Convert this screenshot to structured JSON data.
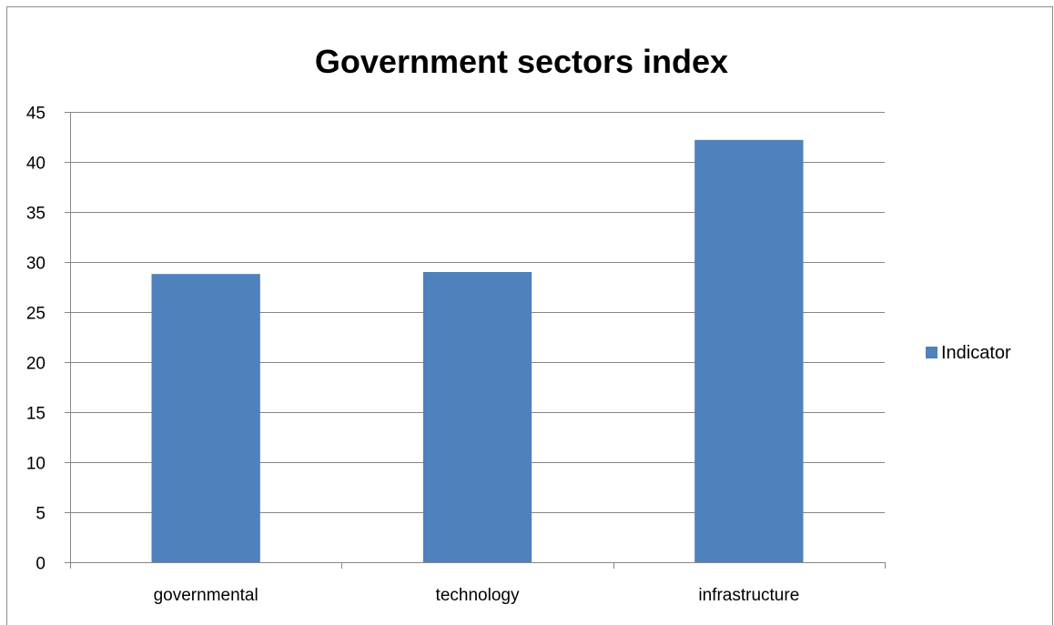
{
  "chart_data": {
    "type": "bar",
    "title": "Government sectors index",
    "categories": [
      "governmental",
      "technology",
      "infrastructure"
    ],
    "series": [
      {
        "name": "Indicator",
        "values": [
          28.8,
          29.0,
          42.2
        ]
      }
    ],
    "ylim": [
      0,
      45
    ],
    "yticks": [
      0,
      5,
      10,
      15,
      20,
      25,
      30,
      35,
      40,
      45
    ],
    "grid": true,
    "legend_position": "right",
    "bar_color": "#4f81bd",
    "grid_color": "#868686"
  }
}
